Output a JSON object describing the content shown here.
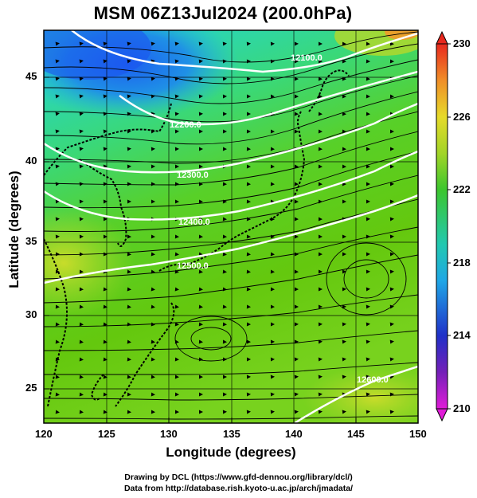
{
  "title": "MSM 06Z13Jul2024 (200.0hPa)",
  "xlabel": "Longitude (degrees)",
  "ylabel": "Latitude  (degrees)",
  "x_ticks": [
    "120",
    "125",
    "130",
    "135",
    "140",
    "145",
    "150"
  ],
  "y_ticks": [
    "25",
    "30",
    "35",
    "40",
    "45"
  ],
  "colorbar": {
    "min": 210,
    "max": 230,
    "tick_labels": [
      "230",
      "226",
      "222",
      "218",
      "214",
      "210"
    ]
  },
  "contours": [
    {
      "label": "12100.0"
    },
    {
      "label": "12200.0"
    },
    {
      "label": "12300.0"
    },
    {
      "label": "12400.0"
    },
    {
      "label": "12500.0"
    },
    {
      "label": "12600.0"
    }
  ],
  "credits": {
    "line1": "Drawing by DCL (https://www.gfd-dennou.org/library/dcl/)",
    "line2": "Data from http://database.rish.kyoto-u.ac.jp/arch/jmadata/"
  }
}
